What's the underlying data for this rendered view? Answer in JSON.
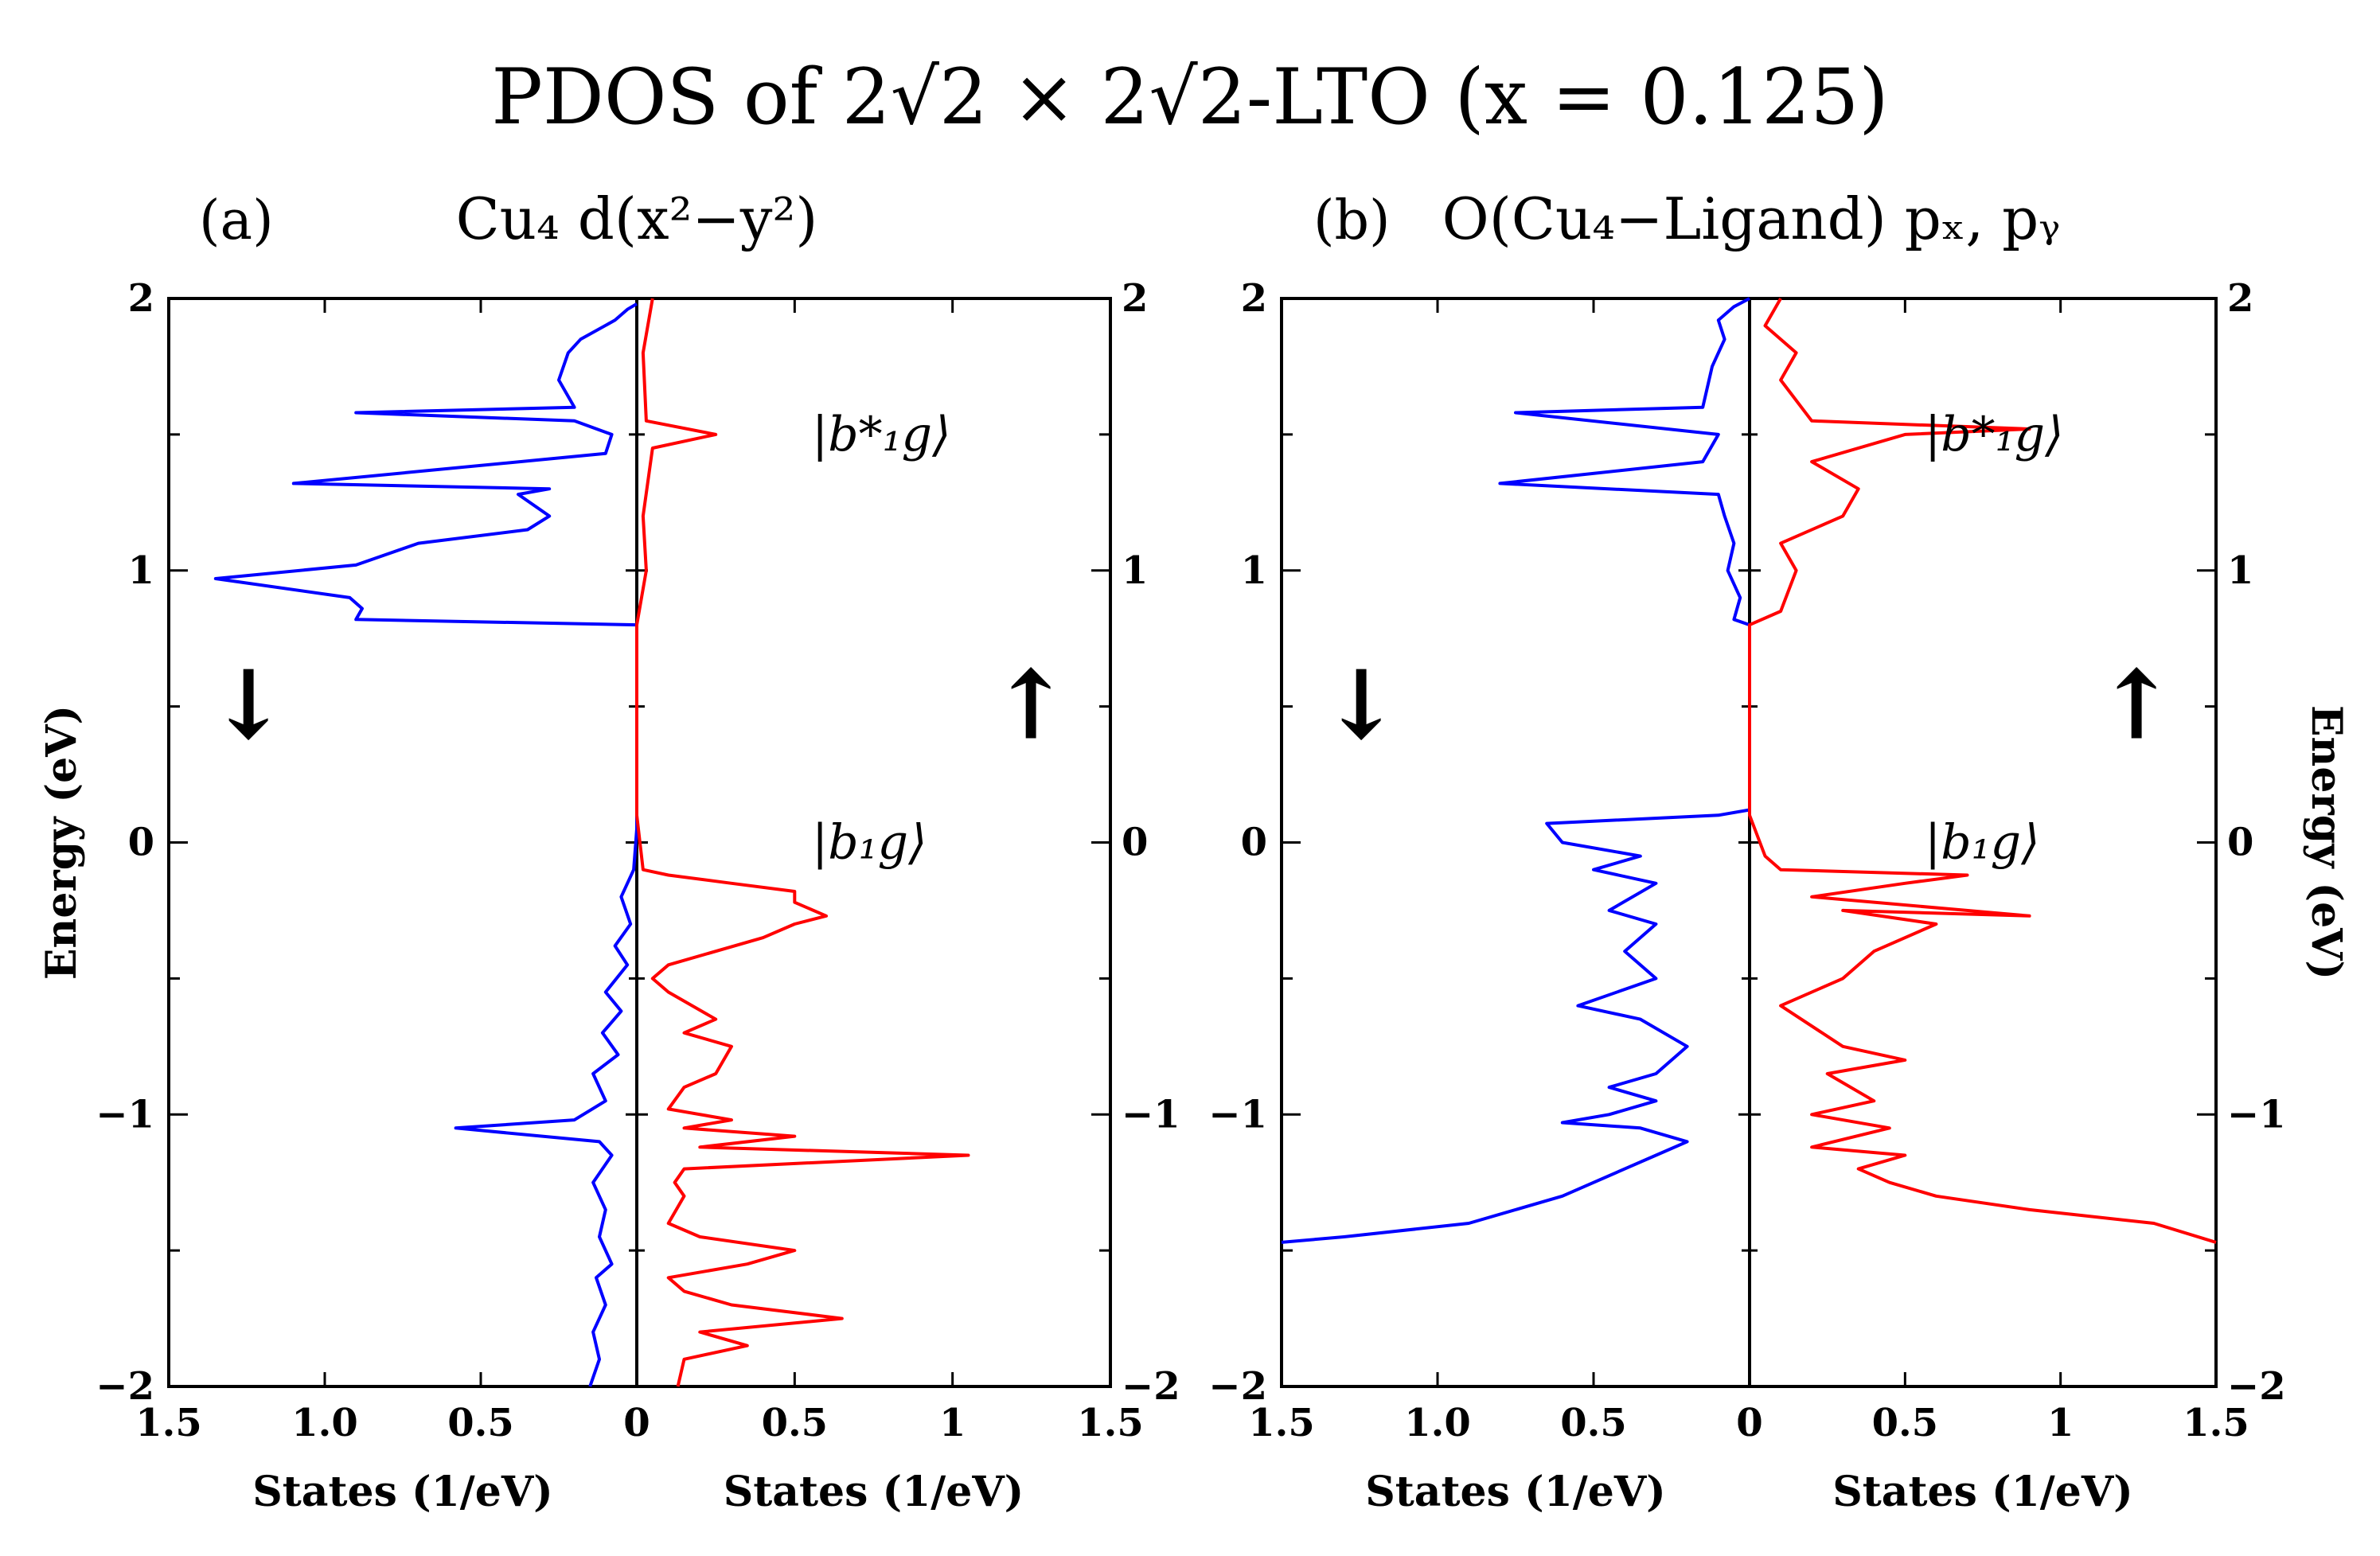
{
  "title": "PDOS of 2√2 × 2√2-LTO (x = 0.125)",
  "colors": {
    "spin_down": "#0000ff",
    "spin_up": "#ff0000",
    "axes": "#000000"
  },
  "chart_data": [
    {
      "type": "line",
      "panel_label": "(a)",
      "title": "Cu₄ d(x²−y²)",
      "ylabel": "Energy (eV)",
      "ylim": [
        -2,
        2
      ],
      "yticks": [
        "2",
        "1",
        "0",
        "−1",
        "−2"
      ],
      "ytick_values": [
        2,
        1,
        0,
        -1,
        -2
      ],
      "left_xlabel": "States (1/eV)",
      "right_xlabel": "States (1/eV)",
      "left_xticks": [
        "1.5",
        "1.0",
        "0.5",
        "0"
      ],
      "right_xticks": [
        "0",
        "0.5",
        "1",
        "1.5"
      ],
      "xtick_values": [
        1.5,
        1.0,
        0.5,
        0
      ],
      "xlim": [
        0,
        1.5
      ],
      "arrow_down": "↓",
      "arrow_up": "↑",
      "annotations": [
        {
          "text": "|b*₁g⟩",
          "energy": 1.5
        },
        {
          "text": "|b₁g⟩",
          "energy": 0.0
        }
      ],
      "series": [
        {
          "name": "spin down",
          "side": "left",
          "points": [
            [
              0.15,
              -2.0
            ],
            [
              0.12,
              -1.9
            ],
            [
              0.14,
              -1.8
            ],
            [
              0.1,
              -1.7
            ],
            [
              0.13,
              -1.6
            ],
            [
              0.08,
              -1.55
            ],
            [
              0.12,
              -1.45
            ],
            [
              0.1,
              -1.35
            ],
            [
              0.14,
              -1.25
            ],
            [
              0.08,
              -1.15
            ],
            [
              0.12,
              -1.1
            ],
            [
              0.58,
              -1.05
            ],
            [
              0.2,
              -1.02
            ],
            [
              0.1,
              -0.95
            ],
            [
              0.14,
              -0.85
            ],
            [
              0.06,
              -0.78
            ],
            [
              0.11,
              -0.7
            ],
            [
              0.05,
              -0.62
            ],
            [
              0.1,
              -0.55
            ],
            [
              0.03,
              -0.45
            ],
            [
              0.07,
              -0.38
            ],
            [
              0.02,
              -0.3
            ],
            [
              0.05,
              -0.2
            ],
            [
              0.01,
              -0.1
            ],
            [
              0.0,
              0.05
            ],
            [
              0.0,
              0.8
            ],
            [
              0.9,
              0.82
            ],
            [
              0.88,
              0.86
            ],
            [
              0.92,
              0.9
            ],
            [
              1.35,
              0.97
            ],
            [
              0.9,
              1.02
            ],
            [
              0.7,
              1.1
            ],
            [
              0.35,
              1.15
            ],
            [
              0.28,
              1.2
            ],
            [
              0.38,
              1.28
            ],
            [
              0.28,
              1.3
            ],
            [
              1.1,
              1.32
            ],
            [
              0.1,
              1.43
            ],
            [
              0.08,
              1.5
            ],
            [
              0.2,
              1.55
            ],
            [
              0.9,
              1.58
            ],
            [
              0.2,
              1.6
            ],
            [
              0.25,
              1.7
            ],
            [
              0.22,
              1.8
            ],
            [
              0.18,
              1.85
            ],
            [
              0.07,
              1.92
            ],
            [
              0.03,
              1.96
            ],
            [
              0.0,
              1.98
            ]
          ]
        },
        {
          "name": "spin up",
          "side": "right",
          "points": [
            [
              0.13,
              -2.0
            ],
            [
              0.15,
              -1.9
            ],
            [
              0.35,
              -1.85
            ],
            [
              0.2,
              -1.8
            ],
            [
              0.65,
              -1.75
            ],
            [
              0.3,
              -1.7
            ],
            [
              0.15,
              -1.65
            ],
            [
              0.1,
              -1.6
            ],
            [
              0.35,
              -1.55
            ],
            [
              0.5,
              -1.5
            ],
            [
              0.2,
              -1.45
            ],
            [
              0.1,
              -1.4
            ],
            [
              0.15,
              -1.3
            ],
            [
              0.12,
              -1.25
            ],
            [
              0.15,
              -1.2
            ],
            [
              1.05,
              -1.15
            ],
            [
              0.2,
              -1.12
            ],
            [
              0.5,
              -1.08
            ],
            [
              0.15,
              -1.05
            ],
            [
              0.3,
              -1.02
            ],
            [
              0.1,
              -0.98
            ],
            [
              0.15,
              -0.9
            ],
            [
              0.25,
              -0.85
            ],
            [
              0.3,
              -0.75
            ],
            [
              0.15,
              -0.7
            ],
            [
              0.25,
              -0.65
            ],
            [
              0.1,
              -0.55
            ],
            [
              0.05,
              -0.5
            ],
            [
              0.1,
              -0.45
            ],
            [
              0.4,
              -0.35
            ],
            [
              0.5,
              -0.3
            ],
            [
              0.6,
              -0.27
            ],
            [
              0.5,
              -0.22
            ],
            [
              0.5,
              -0.18
            ],
            [
              0.3,
              -0.15
            ],
            [
              0.1,
              -0.12
            ],
            [
              0.02,
              -0.1
            ],
            [
              0.0,
              0.1
            ],
            [
              0.0,
              0.8
            ],
            [
              0.03,
              1.0
            ],
            [
              0.02,
              1.2
            ],
            [
              0.05,
              1.45
            ],
            [
              0.25,
              1.5
            ],
            [
              0.03,
              1.55
            ],
            [
              0.02,
              1.8
            ],
            [
              0.05,
              2.0
            ]
          ]
        }
      ]
    },
    {
      "type": "line",
      "panel_label": "(b)",
      "title": "O(Cu₄−Ligand) pₓ, pᵧ",
      "ylabel": "Energy (eV)",
      "ylim": [
        -2,
        2
      ],
      "yticks": [
        "2",
        "1",
        "0",
        "−1",
        "−2"
      ],
      "ytick_values": [
        2,
        1,
        0,
        -1,
        -2
      ],
      "left_xlabel": "States (1/eV)",
      "right_xlabel": "States (1/eV)",
      "left_xticks": [
        "1.5",
        "1.0",
        "0.5",
        "0"
      ],
      "right_xticks": [
        "0",
        "0.5",
        "1",
        "1.5"
      ],
      "xtick_values": [
        1.5,
        1.0,
        0.5,
        0
      ],
      "xlim": [
        0,
        1.5
      ],
      "arrow_down": "↓",
      "arrow_up": "↑",
      "annotations": [
        {
          "text": "|b*₁g⟩",
          "energy": 1.5
        },
        {
          "text": "|b₁g⟩",
          "energy": 0.0
        }
      ],
      "series": [
        {
          "name": "spin down",
          "side": "left",
          "points": [
            [
              1.5,
              -1.47
            ],
            [
              1.3,
              -1.45
            ],
            [
              0.9,
              -1.4
            ],
            [
              0.6,
              -1.3
            ],
            [
              0.4,
              -1.2
            ],
            [
              0.3,
              -1.15
            ],
            [
              0.2,
              -1.1
            ],
            [
              0.35,
              -1.05
            ],
            [
              0.6,
              -1.03
            ],
            [
              0.45,
              -1.0
            ],
            [
              0.3,
              -0.95
            ],
            [
              0.45,
              -0.9
            ],
            [
              0.3,
              -0.85
            ],
            [
              0.2,
              -0.75
            ],
            [
              0.35,
              -0.65
            ],
            [
              0.55,
              -0.6
            ],
            [
              0.3,
              -0.5
            ],
            [
              0.4,
              -0.4
            ],
            [
              0.3,
              -0.3
            ],
            [
              0.45,
              -0.25
            ],
            [
              0.3,
              -0.15
            ],
            [
              0.5,
              -0.1
            ],
            [
              0.35,
              -0.05
            ],
            [
              0.6,
              0.0
            ],
            [
              0.65,
              0.07
            ],
            [
              0.1,
              0.1
            ],
            [
              0.0,
              0.12
            ],
            [
              0.0,
              0.8
            ],
            [
              0.05,
              0.82
            ],
            [
              0.03,
              0.9
            ],
            [
              0.07,
              1.0
            ],
            [
              0.05,
              1.1
            ],
            [
              0.08,
              1.2
            ],
            [
              0.1,
              1.28
            ],
            [
              0.8,
              1.32
            ],
            [
              0.15,
              1.4
            ],
            [
              0.1,
              1.5
            ],
            [
              0.75,
              1.58
            ],
            [
              0.15,
              1.6
            ],
            [
              0.12,
              1.75
            ],
            [
              0.08,
              1.85
            ],
            [
              0.1,
              1.92
            ],
            [
              0.05,
              1.97
            ],
            [
              0.0,
              2.0
            ]
          ]
        },
        {
          "name": "spin up",
          "side": "right",
          "points": [
            [
              1.5,
              -1.47
            ],
            [
              1.3,
              -1.4
            ],
            [
              0.9,
              -1.35
            ],
            [
              0.6,
              -1.3
            ],
            [
              0.45,
              -1.25
            ],
            [
              0.35,
              -1.2
            ],
            [
              0.5,
              -1.15
            ],
            [
              0.2,
              -1.12
            ],
            [
              0.45,
              -1.05
            ],
            [
              0.2,
              -1.0
            ],
            [
              0.4,
              -0.95
            ],
            [
              0.25,
              -0.85
            ],
            [
              0.5,
              -0.8
            ],
            [
              0.3,
              -0.75
            ],
            [
              0.1,
              -0.6
            ],
            [
              0.3,
              -0.5
            ],
            [
              0.4,
              -0.4
            ],
            [
              0.6,
              -0.3
            ],
            [
              0.3,
              -0.25
            ],
            [
              0.9,
              -0.27
            ],
            [
              0.2,
              -0.2
            ],
            [
              0.5,
              -0.15
            ],
            [
              0.7,
              -0.12
            ],
            [
              0.1,
              -0.1
            ],
            [
              0.05,
              -0.05
            ],
            [
              0.0,
              0.1
            ],
            [
              0.0,
              0.8
            ],
            [
              0.1,
              0.85
            ],
            [
              0.15,
              1.0
            ],
            [
              0.1,
              1.1
            ],
            [
              0.3,
              1.2
            ],
            [
              0.35,
              1.3
            ],
            [
              0.2,
              1.4
            ],
            [
              0.5,
              1.5
            ],
            [
              0.9,
              1.52
            ],
            [
              0.2,
              1.55
            ],
            [
              0.1,
              1.7
            ],
            [
              0.15,
              1.8
            ],
            [
              0.05,
              1.9
            ],
            [
              0.1,
              2.0
            ]
          ]
        }
      ]
    }
  ]
}
